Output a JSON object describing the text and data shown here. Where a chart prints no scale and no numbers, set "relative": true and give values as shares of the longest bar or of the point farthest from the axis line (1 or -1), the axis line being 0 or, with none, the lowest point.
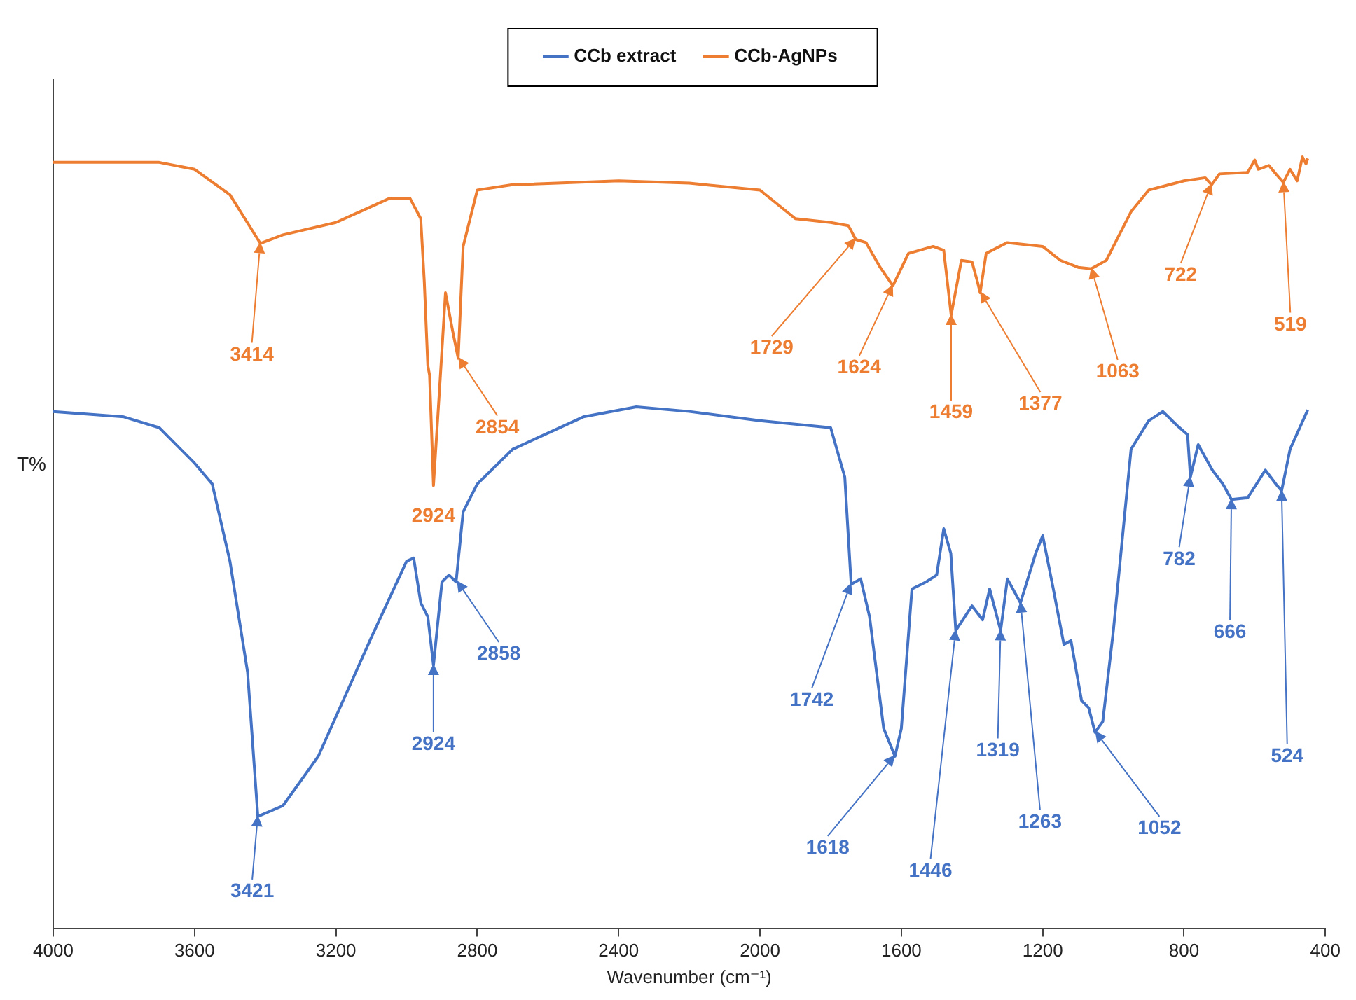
{
  "chart_data": {
    "type": "line",
    "relative": true,
    "ylabel": "T%",
    "xlabel": "Wavenumber (cm⁻¹)",
    "xlim": [
      4000,
      400
    ],
    "xticks": [
      4000,
      3600,
      3200,
      2800,
      2400,
      2000,
      1600,
      1200,
      800,
      400
    ],
    "legend": "top",
    "grid": false,
    "marker": "none",
    "line_style": "solid",
    "series": [
      {
        "name": "CCb extract",
        "color": "#4472c4",
        "x": [
          4000,
          3800,
          3700,
          3600,
          3550,
          3500,
          3450,
          3421,
          3350,
          3250,
          3100,
          3000,
          2980,
          2960,
          2940,
          2924,
          2900,
          2880,
          2860,
          2840,
          2800,
          2700,
          2500,
          2350,
          2200,
          2000,
          1800,
          1760,
          1742,
          1715,
          1690,
          1650,
          1618,
          1600,
          1570,
          1530,
          1500,
          1480,
          1460,
          1446,
          1400,
          1370,
          1350,
          1319,
          1300,
          1263,
          1220,
          1200,
          1170,
          1140,
          1120,
          1090,
          1070,
          1052,
          1030,
          1000,
          950,
          900,
          860,
          820,
          790,
          782,
          760,
          720,
          690,
          666,
          620,
          570,
          540,
          524,
          500,
          450
        ],
        "values": [
          0.67,
          0.663,
          0.649,
          0.603,
          0.576,
          0.476,
          0.332,
          0.145,
          0.159,
          0.223,
          0.377,
          0.476,
          0.48,
          0.422,
          0.404,
          0.341,
          0.449,
          0.458,
          0.449,
          0.54,
          0.576,
          0.621,
          0.663,
          0.676,
          0.67,
          0.658,
          0.649,
          0.585,
          0.446,
          0.453,
          0.404,
          0.259,
          0.223,
          0.259,
          0.44,
          0.449,
          0.458,
          0.518,
          0.486,
          0.386,
          0.418,
          0.4,
          0.44,
          0.386,
          0.453,
          0.422,
          0.486,
          0.509,
          0.44,
          0.368,
          0.373,
          0.295,
          0.286,
          0.254,
          0.268,
          0.386,
          0.621,
          0.658,
          0.67,
          0.652,
          0.64,
          0.585,
          0.627,
          0.594,
          0.576,
          0.556,
          0.558,
          0.594,
          0.576,
          0.567,
          0.621,
          0.672
        ]
      },
      {
        "name": "CCb-AgNPs",
        "color": "#ed7d31",
        "x": [
          4000,
          3700,
          3600,
          3500,
          3414,
          3350,
          3200,
          3050,
          2990,
          2960,
          2950,
          2940,
          2935,
          2924,
          2905,
          2890,
          2870,
          2854,
          2840,
          2800,
          2700,
          2400,
          2200,
          2000,
          1900,
          1800,
          1750,
          1729,
          1700,
          1660,
          1624,
          1580,
          1510,
          1480,
          1459,
          1430,
          1400,
          1385,
          1377,
          1360,
          1300,
          1200,
          1150,
          1100,
          1063,
          1020,
          950,
          900,
          800,
          740,
          722,
          700,
          620,
          600,
          590,
          560,
          540,
          519,
          500,
          480,
          465,
          455,
          450
        ],
        "values": [
          0.993,
          0.993,
          0.984,
          0.951,
          0.888,
          0.899,
          0.915,
          0.946,
          0.946,
          0.92,
          0.839,
          0.73,
          0.717,
          0.574,
          0.712,
          0.824,
          0.775,
          0.739,
          0.884,
          0.957,
          0.964,
          0.969,
          0.966,
          0.957,
          0.92,
          0.915,
          0.911,
          0.893,
          0.889,
          0.857,
          0.833,
          0.875,
          0.884,
          0.879,
          0.795,
          0.866,
          0.864,
          0.839,
          0.824,
          0.875,
          0.889,
          0.884,
          0.866,
          0.857,
          0.855,
          0.866,
          0.929,
          0.957,
          0.969,
          0.973,
          0.964,
          0.978,
          0.98,
          0.996,
          0.984,
          0.989,
          0.978,
          0.967,
          0.984,
          0.969,
          1.0,
          0.991,
          0.998
        ]
      }
    ],
    "annotations": [
      {
        "text": "3414",
        "x": 3414,
        "y": 0.888
      },
      {
        "text": "2924",
        "x": 2924,
        "y": 0.574
      },
      {
        "text": "2854",
        "x": 2854,
        "y": 0.739
      },
      {
        "text": "1729",
        "x": 1729,
        "y": 0.893
      },
      {
        "text": "1624",
        "x": 1624,
        "y": 0.833
      },
      {
        "text": "1459",
        "x": 1459,
        "y": 0.795
      },
      {
        "text": "1377",
        "x": 1377,
        "y": 0.824
      },
      {
        "text": "1063",
        "x": 1063,
        "y": 0.855
      },
      {
        "text": "722",
        "x": 722,
        "y": 0.964
      },
      {
        "text": "519",
        "x": 519,
        "y": 0.967
      },
      {
        "text": "3421",
        "x": 3421,
        "y": 0.145
      },
      {
        "text": "2924",
        "x": 2924,
        "y": 0.341
      },
      {
        "text": "2858",
        "x": 2858,
        "y": 0.449
      },
      {
        "text": "1742",
        "x": 1742,
        "y": 0.446
      },
      {
        "text": "1618",
        "x": 1618,
        "y": 0.223
      },
      {
        "text": "1446",
        "x": 1446,
        "y": 0.386
      },
      {
        "text": "1319",
        "x": 1319,
        "y": 0.386
      },
      {
        "text": "1263",
        "x": 1263,
        "y": 0.422
      },
      {
        "text": "1052",
        "x": 1052,
        "y": 0.254
      },
      {
        "text": "782",
        "x": 782,
        "y": 0.585
      },
      {
        "text": "666",
        "x": 666,
        "y": 0.556
      },
      {
        "text": "524",
        "x": 524,
        "y": 0.567
      }
    ]
  }
}
